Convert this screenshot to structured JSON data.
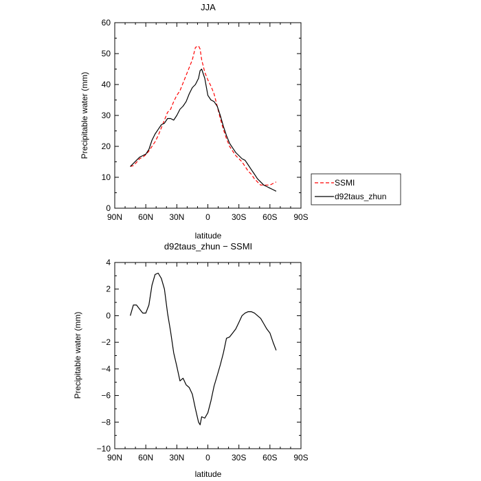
{
  "chart_data": [
    {
      "type": "line",
      "title": "JJA",
      "xlabel": "latitude",
      "ylabel": "Precipitable water (mm)",
      "xlim": [
        90,
        -90
      ],
      "ylim": [
        0,
        60
      ],
      "x_ticks": [
        90,
        60,
        30,
        0,
        -30,
        -60,
        -90
      ],
      "x_tick_labels": [
        "90N",
        "60N",
        "30N",
        "0",
        "30S",
        "60S",
        "90S"
      ],
      "y_ticks": [
        0,
        10,
        20,
        30,
        40,
        50,
        60
      ],
      "y_tick_labels": [
        "0",
        "10",
        "20",
        "30",
        "40",
        "50",
        "60"
      ],
      "legend_position": "right of plot",
      "grid": false,
      "series": [
        {
          "name": "SSMI",
          "color": "#ff0000",
          "style": "dashed",
          "x": [
            75,
            72,
            69,
            66,
            63,
            60,
            57,
            54,
            51,
            48,
            45,
            42,
            39,
            36,
            33,
            30,
            27,
            24,
            21,
            18,
            15,
            12,
            9,
            7.5,
            6,
            3,
            0,
            -3,
            -6,
            -9,
            -12,
            -15,
            -18,
            -21,
            -24,
            -27,
            -30,
            -33,
            -36,
            -39,
            -42,
            -45,
            -48,
            -51,
            -54,
            -57,
            -60,
            -63,
            -66
          ],
          "y": [
            13.5,
            13.8,
            14.8,
            16.0,
            16.5,
            17.3,
            18.5,
            20.0,
            21.5,
            23.5,
            26.0,
            28.5,
            31.0,
            32.0,
            34.5,
            36.5,
            38.0,
            40.5,
            43.0,
            45.5,
            48.0,
            52.0,
            52.5,
            51.5,
            48.0,
            44.0,
            41.5,
            39.5,
            37.0,
            33.0,
            29.0,
            25.5,
            22.5,
            20.0,
            18.5,
            17.0,
            16.0,
            15.0,
            13.5,
            12.0,
            11.0,
            9.5,
            8.5,
            7.5,
            7.5,
            7.5,
            7.5,
            8.0,
            8.5
          ]
        },
        {
          "name": "d92taus_zhun",
          "color": "#000000",
          "style": "solid",
          "x": [
            75,
            72,
            69,
            66,
            63,
            60,
            57,
            54,
            51,
            48,
            45,
            42,
            39,
            36,
            33,
            30,
            27,
            24,
            21,
            18,
            15,
            12,
            9,
            7.5,
            6,
            3,
            0,
            -3,
            -6,
            -9,
            -12,
            -15,
            -18,
            -21,
            -24,
            -27,
            -30,
            -33,
            -36,
            -39,
            -42,
            -45,
            -48,
            -51,
            -54,
            -57,
            -60,
            -63,
            -66
          ],
          "y": [
            13.5,
            14.5,
            15.5,
            16.5,
            17.0,
            17.5,
            19.0,
            22.0,
            24.0,
            25.5,
            27.0,
            27.5,
            29.0,
            29.0,
            28.5,
            30.0,
            32.0,
            33.0,
            34.5,
            37.0,
            39.0,
            40.0,
            42.0,
            44.5,
            45.0,
            42.0,
            36.5,
            35.0,
            34.5,
            33.0,
            30.0,
            26.5,
            23.5,
            21.0,
            19.5,
            18.0,
            17.0,
            16.0,
            15.5,
            14.0,
            12.5,
            11.0,
            9.5,
            8.5,
            7.5,
            7.0,
            6.5,
            6.0,
            5.5
          ]
        }
      ]
    },
    {
      "type": "line",
      "title": "d92taus_zhun − SSMI",
      "xlabel": "latitude",
      "ylabel": "Precipitable water (mm)",
      "xlim": [
        90,
        -90
      ],
      "ylim": [
        -10,
        4
      ],
      "x_ticks": [
        90,
        60,
        30,
        0,
        -30,
        -60,
        -90
      ],
      "x_tick_labels": [
        "90N",
        "60N",
        "30N",
        "0",
        "30S",
        "60S",
        "90S"
      ],
      "y_ticks": [
        4,
        2,
        0,
        -2,
        -4,
        -6,
        -8,
        -10
      ],
      "y_tick_labels": [
        "4",
        "2",
        "0",
        "−2",
        "−4",
        "−6",
        "−8",
        "−10"
      ],
      "grid": false,
      "series": [
        {
          "color": "#000000",
          "style": "solid",
          "x": [
            75,
            72,
            69,
            66,
            63,
            60,
            57,
            54,
            51,
            48,
            45,
            42,
            39,
            36,
            33,
            30,
            27,
            24,
            21,
            18,
            15,
            12,
            9,
            7.5,
            6,
            3,
            0,
            -3,
            -6,
            -9,
            -12,
            -15,
            -18,
            -21,
            -24,
            -27,
            -30,
            -33,
            -36,
            -39,
            -42,
            -45,
            -48,
            -51,
            -54,
            -57,
            -60,
            -63,
            -66
          ],
          "y": [
            0.0,
            0.8,
            0.8,
            0.5,
            0.2,
            0.2,
            0.8,
            2.3,
            3.1,
            3.2,
            2.8,
            2.0,
            0.2,
            -1.2,
            -2.8,
            -3.8,
            -4.9,
            -4.7,
            -5.2,
            -5.4,
            -5.9,
            -7.0,
            -8.0,
            -8.2,
            -7.6,
            -7.7,
            -7.3,
            -6.4,
            -5.3,
            -4.5,
            -3.7,
            -2.8,
            -1.7,
            -1.6,
            -1.3,
            -1.0,
            -0.5,
            0.0,
            0.2,
            0.3,
            0.3,
            0.2,
            0.0,
            -0.2,
            -0.6,
            -1.0,
            -1.3,
            -2.0,
            -2.6
          ]
        }
      ]
    }
  ]
}
